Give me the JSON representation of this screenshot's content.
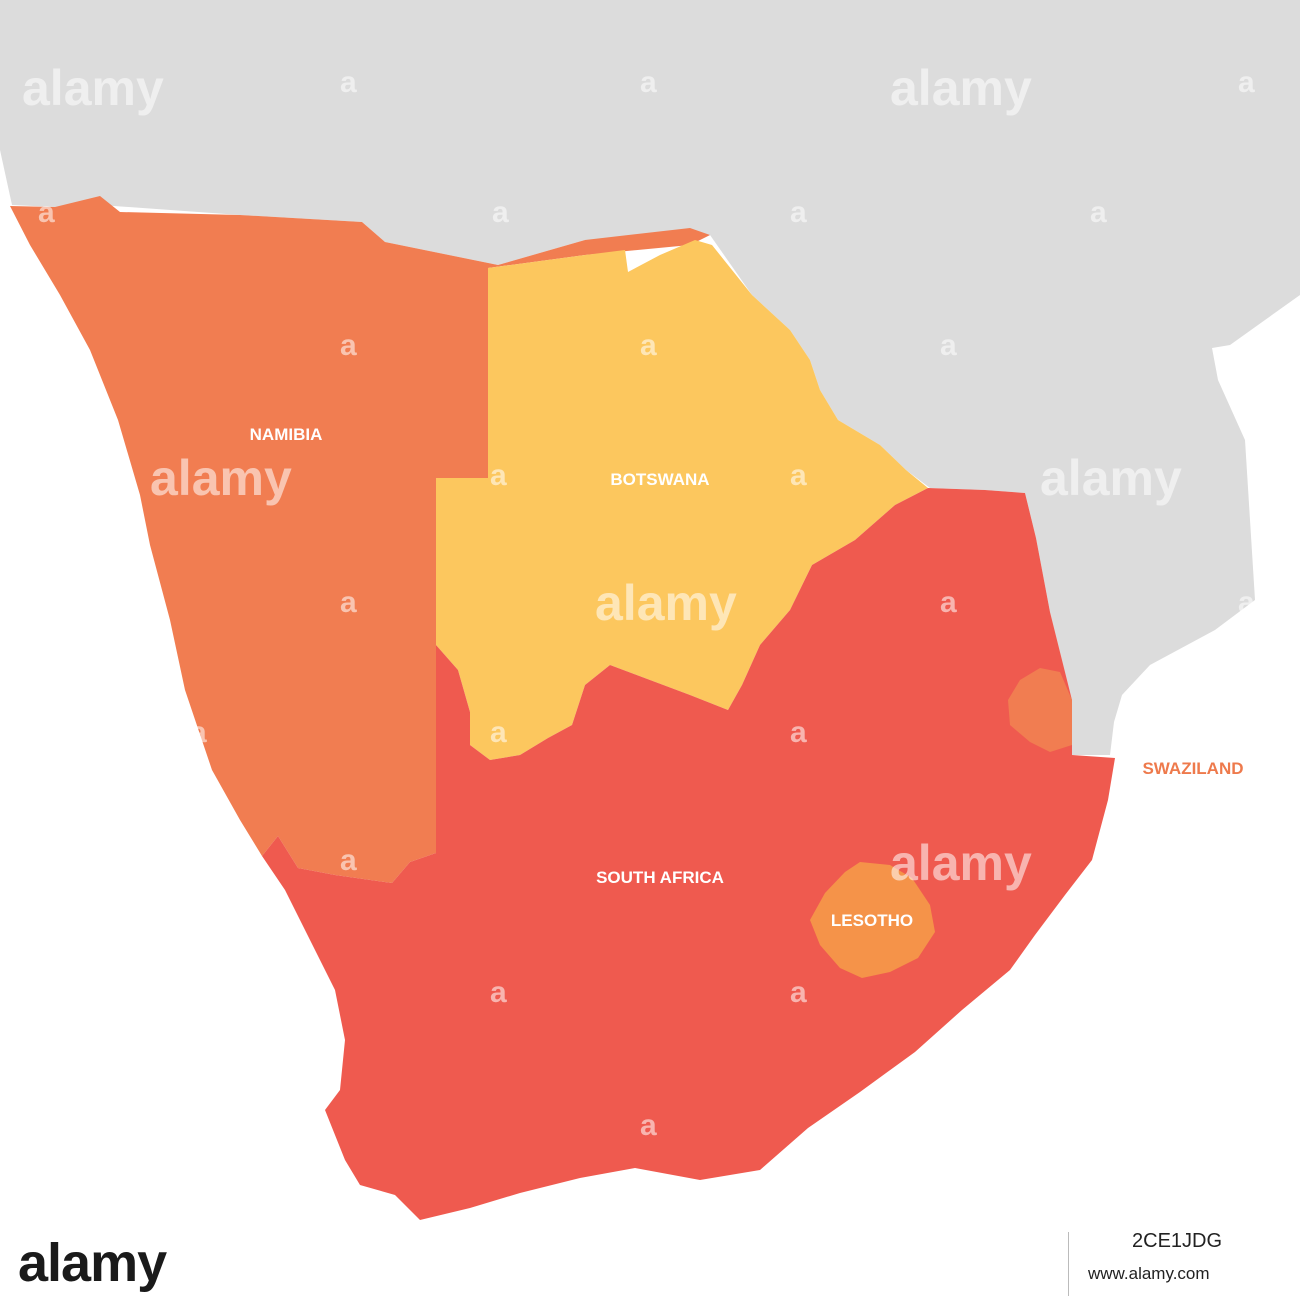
{
  "map": {
    "colors": {
      "background_land": "#dcdcdc",
      "namibia": "#f17d51",
      "botswana": "#fcc75e",
      "south_africa": "#ef5a4f",
      "lesotho": "#f59349",
      "swaziland": "#f17d51",
      "label_white": "#ffffff",
      "label_swaziland": "#ee7a4c"
    },
    "labels": {
      "namibia": "NAMIBIA",
      "botswana": "BOTSWANA",
      "south_africa": "SOUTH AFRICA",
      "lesotho": "LESOTHO",
      "swaziland": "SWAZILAND"
    },
    "watermark": {
      "word": "alamy",
      "letter": "a"
    }
  },
  "footer": {
    "brand": "alamy",
    "image_id": "2CE1JDG",
    "site_url": "www.alamy.com"
  }
}
